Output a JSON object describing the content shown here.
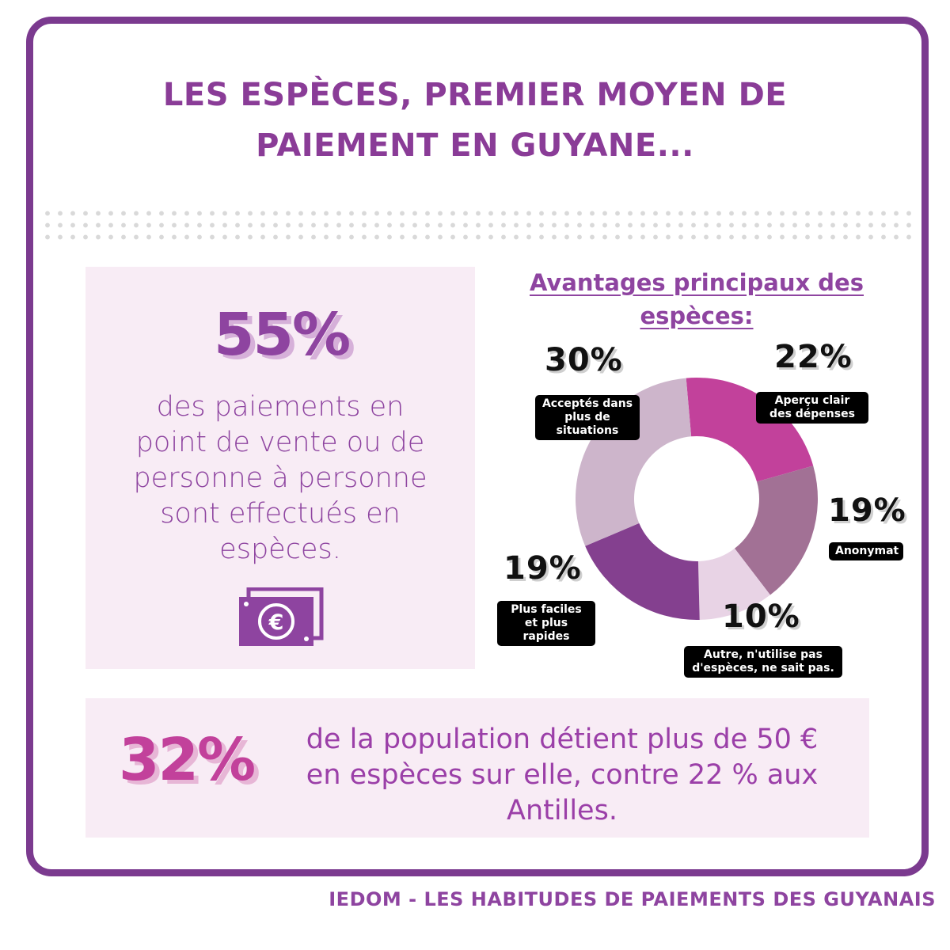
{
  "title": {
    "line1": "LES ESPÈCES, PREMIER MOYEN DE",
    "line2": "PAIEMENT EN GUYANE..."
  },
  "main_stat": {
    "value": "55%",
    "desc_lines": [
      "des paiements en",
      "point de vente ou de",
      "personne à personne",
      "sont effectués en",
      "espèces."
    ],
    "icon": "euro-banknote-icon"
  },
  "bottom_stat": {
    "value": "32%",
    "desc_lines": [
      "de la population détient plus de 50 €",
      "en espèces sur elle, contre 22 % aux",
      "Antilles."
    ]
  },
  "chart_data": {
    "type": "pie",
    "subtype": "donut",
    "title_lines": [
      "Avantages principaux des",
      "espèces:"
    ],
    "slices": [
      {
        "label": "Aperçu clair des dépenses",
        "value": 22,
        "display": "22%",
        "color": "#c2419b"
      },
      {
        "label": "Anonymat",
        "value": 19,
        "display": "19%",
        "color": "#a27195"
      },
      {
        "label": "Autre, n'utilise pas d'espèces, ne sait pas.",
        "value": 10,
        "display": "10%",
        "color": "#e8d3e5"
      },
      {
        "label": "Plus faciles et plus rapides",
        "value": 19,
        "display": "19%",
        "color": "#84408f"
      },
      {
        "label": "Acceptés dans plus de situations",
        "value": 30,
        "display": "30%",
        "color": "#cdb5cb"
      }
    ]
  },
  "footer": "IEDOM - LES HABITUDES DE PAIEMENTS DES GUYANAIS",
  "colors": {
    "frame": "#7b3a8f",
    "primary_purple": "#8e44a0",
    "accent_pink": "#c2419b",
    "card_bg": "#f8ecf5"
  }
}
